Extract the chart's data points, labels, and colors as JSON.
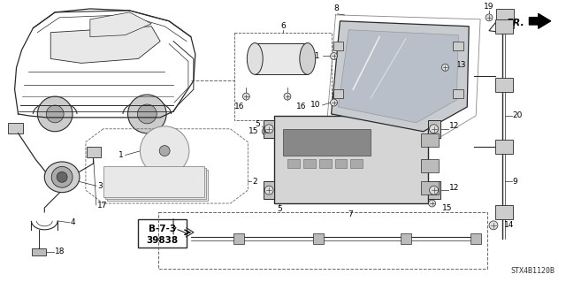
{
  "bg_color": "#ffffff",
  "fig_width": 6.4,
  "fig_height": 3.19,
  "dpi": 100,
  "diagram_code": "STX4B1120B",
  "line_color": "#2a2a2a",
  "text_color": "#000000",
  "label_fontsize": 6.5
}
